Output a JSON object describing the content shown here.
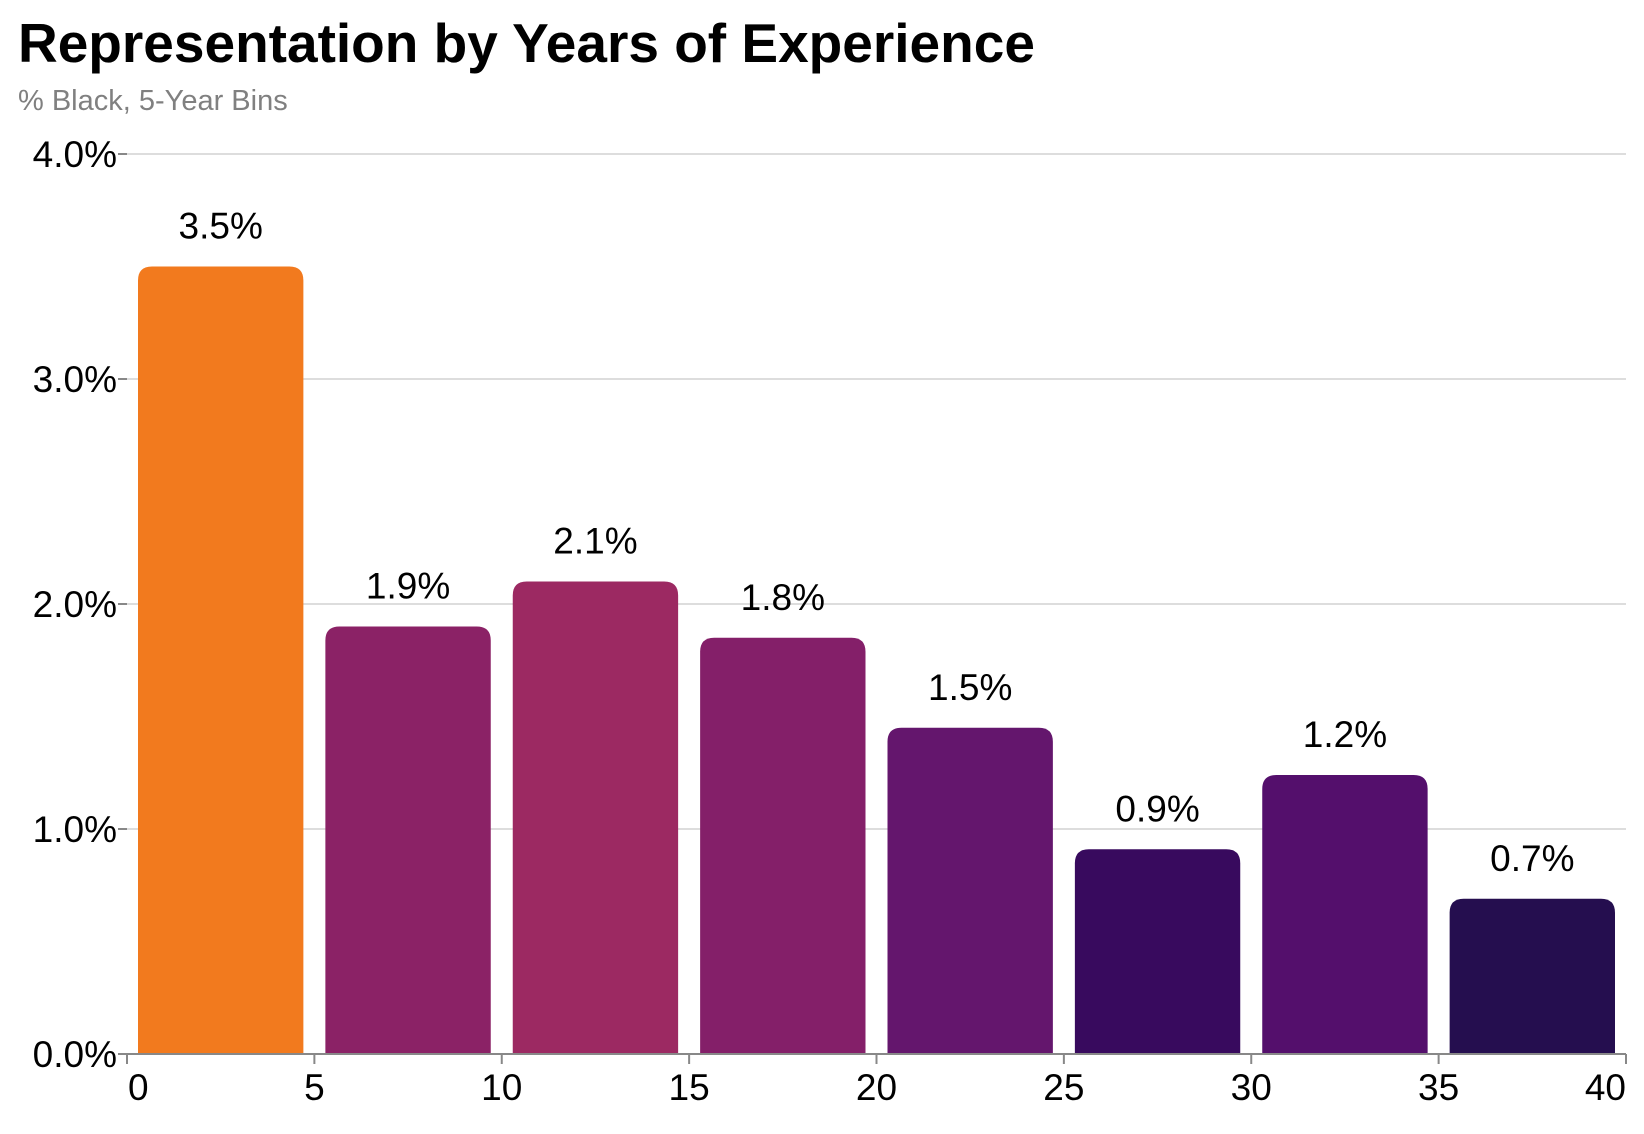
{
  "chart_data": {
    "type": "bar",
    "title": "Representation by Years of Experience",
    "subtitle": "% Black, 5-Year Bins",
    "xlabel": "",
    "ylabel": "",
    "bins": [
      {
        "start": 0,
        "end": 5,
        "value": 3.5,
        "label": "3.5%",
        "color": "#f27a1e"
      },
      {
        "start": 5,
        "end": 10,
        "value": 1.9,
        "label": "1.9%",
        "color": "#8b2266"
      },
      {
        "start": 10,
        "end": 15,
        "value": 2.1,
        "label": "2.1%",
        "color": "#9c2962"
      },
      {
        "start": 15,
        "end": 20,
        "value": 1.85,
        "label": "1.8%",
        "color": "#841f69"
      },
      {
        "start": 20,
        "end": 25,
        "value": 1.45,
        "label": "1.5%",
        "color": "#64166d"
      },
      {
        "start": 25,
        "end": 30,
        "value": 0.91,
        "label": "0.9%",
        "color": "#380a5e"
      },
      {
        "start": 30,
        "end": 35,
        "value": 1.24,
        "label": "1.2%",
        "color": "#540f6c"
      },
      {
        "start": 35,
        "end": 40,
        "value": 0.69,
        "label": "0.7%",
        "color": "#250e4f"
      }
    ],
    "xlim": [
      0,
      40
    ],
    "ylim": [
      0,
      4.0
    ],
    "x_ticks": [
      "0",
      "5",
      "10",
      "15",
      "20",
      "25",
      "30",
      "35",
      "40"
    ],
    "y_ticks": [
      {
        "value": 0,
        "label": "0.0%"
      },
      {
        "value": 1,
        "label": "1.0%"
      },
      {
        "value": 2,
        "label": "2.0%"
      },
      {
        "value": 3,
        "label": "3.0%"
      },
      {
        "value": 4,
        "label": "4.0%"
      }
    ],
    "grid": true,
    "legend": "none"
  }
}
